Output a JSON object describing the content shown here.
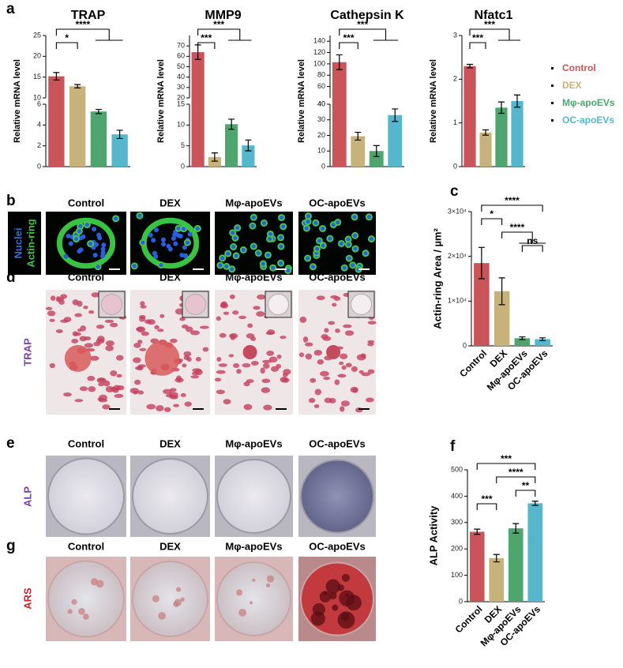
{
  "figure": {
    "panel_labels": [
      "a",
      "b",
      "c",
      "d",
      "e",
      "f",
      "g"
    ],
    "b": {
      "row_label": [
        "Nuclei",
        "Actin-ring"
      ],
      "columns": [
        "Control",
        "DEX",
        "Mφ-apoEVs",
        "OC-apoEVs"
      ]
    },
    "d": {
      "row_label": "TRAP",
      "columns": [
        "Control",
        "DEX",
        "Mφ-apoEVs",
        "OC-apoEVs"
      ]
    },
    "e": {
      "row_label": "ALP",
      "columns": [
        "Control",
        "DEX",
        "Mφ-apoEVs",
        "OC-apoEVs"
      ]
    },
    "g": {
      "row_label": "ARS",
      "columns": [
        "Control",
        "DEX",
        "Mφ-apoEVs",
        "OC-apoEVs"
      ]
    }
  },
  "chart_data": [
    {
      "type": "bar",
      "title": "TRAP",
      "ylabel": "Relative mRNA level",
      "categories": [
        null,
        null,
        null,
        null
      ],
      "values": [
        15.2,
        12.8,
        5.3,
        3.1
      ],
      "errors": [
        0.9,
        0.4,
        0.2,
        0.4
      ],
      "colors": [
        "#c9545a",
        "#c8b27c",
        "#4ea66e",
        "#55b6cc"
      ],
      "ysegments": [
        {
          "ylim": [
            0,
            6
          ],
          "yticks": [
            0,
            2,
            4,
            6
          ]
        },
        {
          "ylim": [
            10,
            25
          ],
          "yticks": [
            10,
            15,
            20,
            25
          ]
        }
      ],
      "annotations": [
        {
          "text": "****",
          "from": 0,
          "to": [
            2,
            3
          ]
        },
        {
          "text": "*",
          "from": 0,
          "to": 1
        }
      ]
    },
    {
      "type": "bar",
      "title": "MMP9",
      "ylabel": "Relative mRNA level",
      "categories": [
        null,
        null,
        null,
        null
      ],
      "values": [
        64,
        2.3,
        10.2,
        5.1
      ],
      "errors": [
        7,
        1,
        1.2,
        1.3
      ],
      "colors": [
        "#c9545a",
        "#c8b27c",
        "#4ea66e",
        "#55b6cc"
      ],
      "ysegments": [
        {
          "ylim": [
            0,
            15
          ],
          "yticks": [
            0,
            5,
            10,
            15
          ]
        },
        {
          "ylim": [
            20,
            80
          ],
          "yticks": [
            20,
            30,
            40,
            50,
            60,
            70
          ]
        }
      ],
      "annotations": [
        {
          "text": "***",
          "from": 0,
          "to": [
            2,
            3
          ]
        },
        {
          "text": "***",
          "from": 0,
          "to": 1
        }
      ]
    },
    {
      "type": "bar",
      "title": "Cathepsin K",
      "ylabel": "Relative mRNA level",
      "categories": [
        null,
        null,
        null,
        null
      ],
      "values": [
        103,
        19.5,
        10,
        33
      ],
      "errors": [
        13,
        2.5,
        3.5,
        4
      ],
      "colors": [
        "#c9545a",
        "#c8b27c",
        "#4ea66e",
        "#55b6cc"
      ],
      "ysegments": [
        {
          "ylim": [
            0,
            40
          ],
          "yticks": [
            0,
            10,
            20,
            30,
            40
          ]
        },
        {
          "ylim": [
            40,
            150
          ],
          "yticks": [
            40,
            60,
            80,
            100,
            120,
            140
          ]
        }
      ],
      "annotations": [
        {
          "text": "***",
          "from": 0,
          "to": [
            2,
            3
          ]
        },
        {
          "text": "***",
          "from": 0,
          "to": 1
        }
      ]
    },
    {
      "type": "bar",
      "title": "Nfatc1",
      "ylabel": "Relative mRNA level",
      "categories": [
        null,
        null,
        null,
        null
      ],
      "values": [
        2.3,
        0.78,
        1.35,
        1.5
      ],
      "errors": [
        0.04,
        0.06,
        0.13,
        0.14
      ],
      "colors": [
        "#c9545a",
        "#c8b27c",
        "#4ea66e",
        "#55b6cc"
      ],
      "ysegments": [
        {
          "ylim": [
            0,
            3
          ],
          "yticks": [
            0,
            1,
            2,
            3
          ]
        }
      ],
      "annotations": [
        {
          "text": "***",
          "from": 0,
          "to": [
            2,
            3
          ]
        },
        {
          "text": "***",
          "from": 0,
          "to": 1
        }
      ],
      "legend": [
        {
          "name": "Control",
          "color": "#c9545a"
        },
        {
          "name": "DEX",
          "color": "#c8b27c"
        },
        {
          "name": "Mφ-apoEVs",
          "color": "#4ea66e"
        },
        {
          "name": "OC-apoEVs",
          "color": "#55b6cc"
        }
      ]
    },
    {
      "type": "bar",
      "ylabel": "Actin-ring Area / µm²",
      "categories": [
        "Control",
        "DEX",
        "Mφ-apoEVs",
        "OC-apoEVs"
      ],
      "values": [
        18500,
        12200,
        1700,
        1500
      ],
      "errors": [
        3500,
        3000,
        300,
        300
      ],
      "colors": [
        "#c9545a",
        "#c8b27c",
        "#4ea66e",
        "#55b6cc"
      ],
      "ysegments": [
        {
          "ylim": [
            0,
            30000
          ],
          "yticks": [
            0,
            {
              "value": 10000,
              "label": "1×10⁴"
            },
            {
              "value": 20000,
              "label": "2×10⁴"
            },
            {
              "value": 30000,
              "label": "3×10⁴"
            }
          ]
        }
      ],
      "annotations": [
        {
          "text": "****",
          "from": 0,
          "to": 3
        },
        {
          "text": "*",
          "from": 0,
          "to": 1
        },
        {
          "text": "****",
          "from": 1,
          "to": [
            2,
            3
          ]
        },
        {
          "text": "ns",
          "from": 2,
          "to": 3
        }
      ]
    },
    {
      "type": "bar",
      "ylabel": "ALP Activity",
      "categories": [
        "Control",
        "DEX",
        "Mφ-apoEVs",
        "OC-apoEVs"
      ],
      "values": [
        265,
        165,
        278,
        373
      ],
      "errors": [
        10,
        14,
        18,
        8
      ],
      "colors": [
        "#c9545a",
        "#c8b27c",
        "#4ea66e",
        "#55b6cc"
      ],
      "ysegments": [
        {
          "ylim": [
            0,
            500
          ],
          "yticks": [
            0,
            100,
            200,
            300,
            400,
            500
          ]
        }
      ],
      "annotations": [
        {
          "text": "***",
          "from": 0,
          "to": 3
        },
        {
          "text": "****",
          "from": 1,
          "to": 3
        },
        {
          "text": "**",
          "from": 2,
          "to": 3
        },
        {
          "text": "***",
          "from": 0,
          "to": 1
        }
      ]
    }
  ]
}
